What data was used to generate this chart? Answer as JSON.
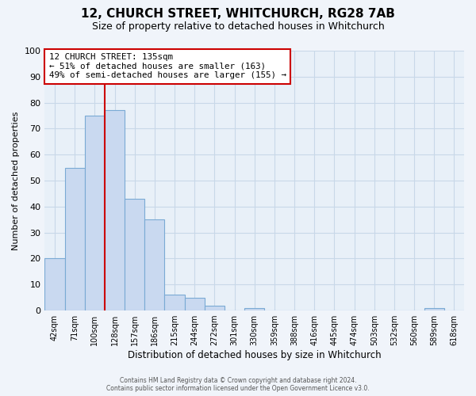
{
  "title": "12, CHURCH STREET, WHITCHURCH, RG28 7AB",
  "subtitle": "Size of property relative to detached houses in Whitchurch",
  "xlabel": "Distribution of detached houses by size in Whitchurch",
  "ylabel": "Number of detached properties",
  "bin_labels": [
    "42sqm",
    "71sqm",
    "100sqm",
    "128sqm",
    "157sqm",
    "186sqm",
    "215sqm",
    "244sqm",
    "272sqm",
    "301sqm",
    "330sqm",
    "359sqm",
    "388sqm",
    "416sqm",
    "445sqm",
    "474sqm",
    "503sqm",
    "532sqm",
    "560sqm",
    "589sqm",
    "618sqm"
  ],
  "bar_heights": [
    20,
    55,
    75,
    77,
    43,
    35,
    6,
    5,
    2,
    0,
    1,
    0,
    0,
    0,
    0,
    0,
    0,
    0,
    0,
    1,
    0
  ],
  "bar_color": "#c9d9f0",
  "bar_edge_color": "#7aaad4",
  "vline_index": 3,
  "vline_color": "#cc0000",
  "annotation_text": "12 CHURCH STREET: 135sqm\n← 51% of detached houses are smaller (163)\n49% of semi-detached houses are larger (155) →",
  "annotation_box_color": "#cc0000",
  "ylim": [
    0,
    100
  ],
  "yticks": [
    0,
    10,
    20,
    30,
    40,
    50,
    60,
    70,
    80,
    90,
    100
  ],
  "grid_color": "#c8d8e8",
  "bg_color": "#e8f0f8",
  "fig_bg_color": "#f0f4fa",
  "footer_line1": "Contains HM Land Registry data © Crown copyright and database right 2024.",
  "footer_line2": "Contains public sector information licensed under the Open Government Licence v3.0."
}
